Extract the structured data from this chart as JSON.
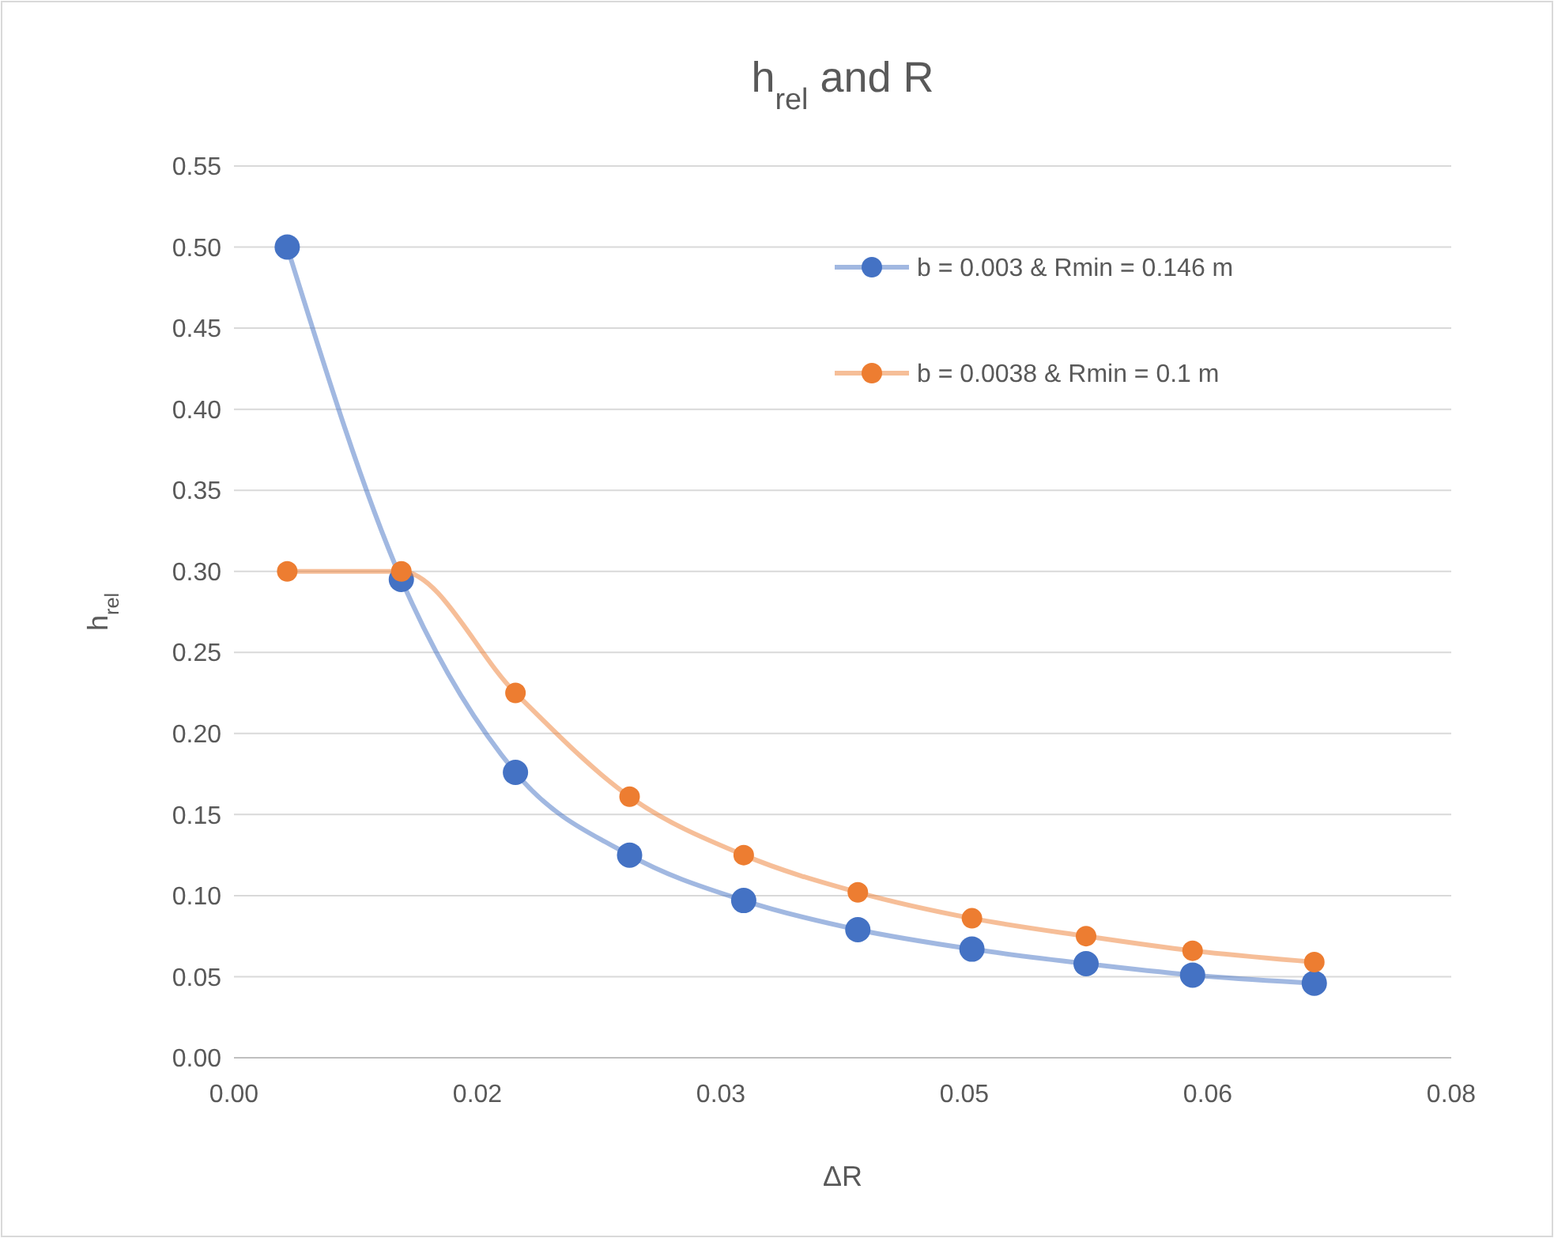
{
  "chart_data": {
    "type": "line",
    "title": "h$_{rel}$ and R",
    "xlabel": "ΔR",
    "ylabel": "h$_{rel}$",
    "xlim": [
      0,
      0.08
    ],
    "xticks": [
      {
        "value": 0,
        "label": "0.00"
      },
      {
        "value": 0.016,
        "label": "0.02"
      },
      {
        "value": 0.032,
        "label": "0.03"
      },
      {
        "value": 0.048,
        "label": "0.05"
      },
      {
        "value": 0.064,
        "label": "0.06"
      },
      {
        "value": 0.08,
        "label": "0.08"
      }
    ],
    "ylim": [
      0,
      0.55
    ],
    "yticks": [
      {
        "value": 0,
        "label": "0.00"
      },
      {
        "value": 0.05,
        "label": "0.05"
      },
      {
        "value": 0.1,
        "label": "0.10"
      },
      {
        "value": 0.15,
        "label": "0.15"
      },
      {
        "value": 0.2,
        "label": "0.20"
      },
      {
        "value": 0.25,
        "label": "0.25"
      },
      {
        "value": 0.3,
        "label": "0.30"
      },
      {
        "value": 0.35,
        "label": "0.35"
      },
      {
        "value": 0.4,
        "label": "0.40"
      },
      {
        "value": 0.45,
        "label": "0.45"
      },
      {
        "value": 0.5,
        "label": "0.50"
      },
      {
        "value": 0.55,
        "label": "0.55"
      }
    ],
    "x": [
      0.0035,
      0.011,
      0.0185,
      0.026,
      0.0335,
      0.041,
      0.0485,
      0.056,
      0.063,
      0.071
    ],
    "grid": "y",
    "legend": "top right",
    "marker": "circle",
    "line_style": "solid",
    "series": [
      {
        "name": "b = 0.003 & Rmin = 0.146 m",
        "color": "#4472c4",
        "values": [
          0.5,
          0.295,
          0.176,
          0.125,
          0.097,
          0.079,
          0.067,
          0.058,
          0.051,
          0.046
        ]
      },
      {
        "name": "b = 0.0038 & Rmin = 0.1 m",
        "color": "#ed7d31",
        "values": [
          0.3,
          0.3,
          0.225,
          0.161,
          0.125,
          0.102,
          0.086,
          0.075,
          0.066,
          0.059
        ]
      }
    ]
  }
}
